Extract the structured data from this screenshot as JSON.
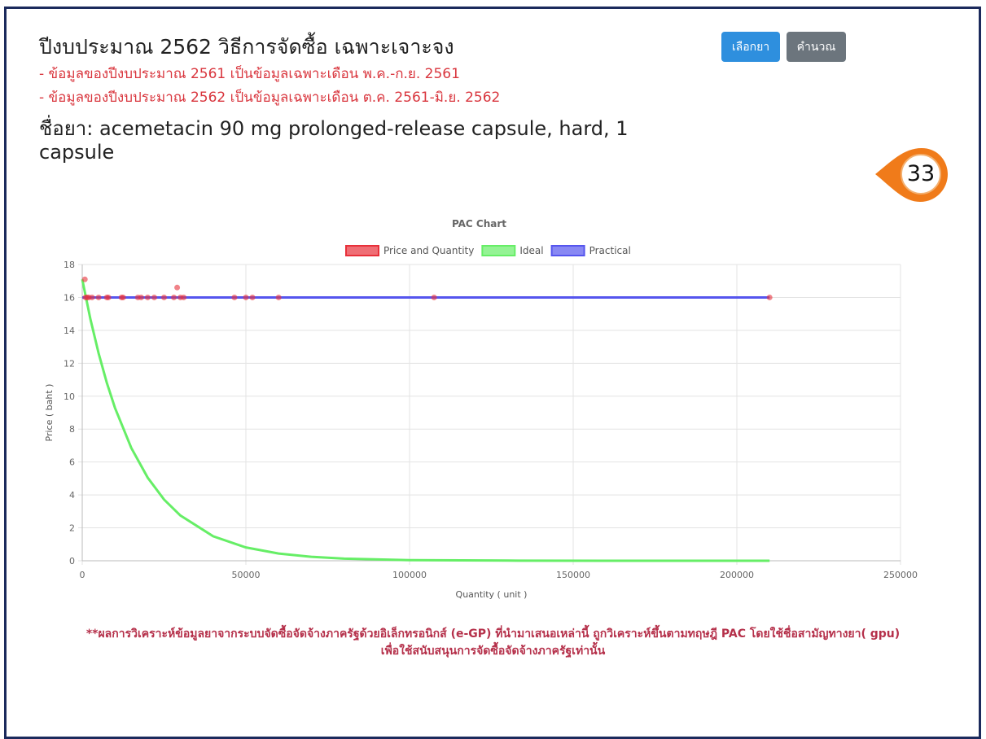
{
  "header": {
    "title": "ปีงบประมาณ 2562  วิธีการจัดซื้อ เฉพาะเจาะจง",
    "notes": [
      "- ข้อมูลของปีงบประมาณ 2561 เป็นข้อมูลเฉพาะเดือน พ.ค.-ก.ย. 2561",
      "- ข้อมูลของปีงบประมาณ 2562 เป็นข้อมูลเฉพาะเดือน ต.ค. 2561-มิ.ย. 2562"
    ],
    "drug": "ชื่อยา: acemetacin 90 mg prolonged-release capsule, hard, 1 capsule"
  },
  "buttons": [
    "เลือกยา",
    "คำนวณ"
  ],
  "badge": 33,
  "chart_data": {
    "type": "scatter",
    "title": "PAC Chart",
    "xlabel": "Quantity ( unit )",
    "ylabel": "Price ( baht )",
    "xlim": [
      0,
      250000
    ],
    "xticks": [
      0,
      50000,
      100000,
      150000,
      200000,
      250000
    ],
    "ylim": [
      0,
      18
    ],
    "yticks": [
      0,
      2,
      4,
      6,
      8,
      10,
      12,
      14,
      16,
      18
    ],
    "grid": true,
    "legend": "top",
    "series": [
      {
        "name": "Price and Quantity",
        "type": "scatter",
        "color": "#e8303a",
        "x": [
          800,
          1000,
          1500,
          2000,
          3000,
          5000,
          7500,
          8000,
          12000,
          12500,
          17000,
          18000,
          20000,
          22000,
          25000,
          28000,
          29000,
          30000,
          31000,
          46500,
          50000,
          52000,
          60000,
          107500,
          210000
        ],
        "values": [
          17.1,
          16,
          16,
          16,
          16,
          16,
          16,
          16,
          16,
          16,
          16,
          16,
          16,
          16,
          16,
          16,
          16.6,
          16,
          16,
          16,
          16,
          16,
          16,
          16,
          16
        ]
      },
      {
        "name": "Ideal",
        "type": "line",
        "color": "#66ee66",
        "x": [
          0,
          2500,
          5000,
          7500,
          10000,
          15000,
          20000,
          25000,
          30000,
          40000,
          50000,
          60000,
          70000,
          80000,
          100000,
          130000,
          160000,
          210000
        ],
        "values": [
          17.1,
          14.68,
          12.61,
          10.82,
          9.29,
          6.85,
          5.05,
          3.72,
          2.75,
          1.49,
          0.81,
          0.44,
          0.24,
          0.13,
          0.04,
          0.01,
          0,
          0
        ]
      },
      {
        "name": "Practical",
        "type": "line",
        "color": "#5555ee",
        "x": [
          0,
          210000
        ],
        "values": [
          16,
          16
        ]
      }
    ]
  },
  "footer": [
    "**ผลการวิเคราะห์ข้อมูลยาจากระบบจัดซื้อจัดจ้างภาครัฐด้วยอิเล็กทรอนิกส์ (e-GP) ที่นำมาเสนอเหล่านี้ ถูกวิเคราะห์ขึ้นตามทฤษฎี PAC โดยใช้ชื่อสามัญทางยา( gpu)",
    "เพื่อใช้สนับสนุนการจัดซื้อจัดจ้างภาครัฐเท่านั้น"
  ]
}
